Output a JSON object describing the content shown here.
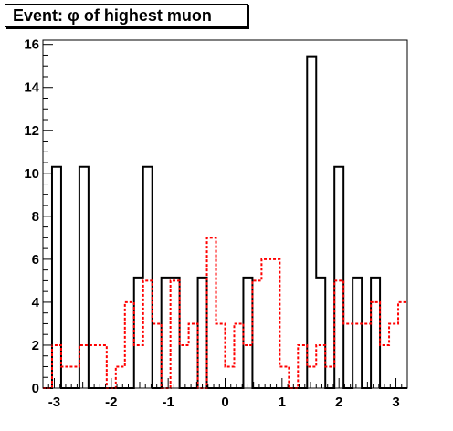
{
  "chart_data": {
    "type": "histogram",
    "title": "Event: φ of highest muon",
    "xlabel": "",
    "ylabel": "",
    "xlim": [
      -3.2,
      3.2
    ],
    "ylim": [
      0,
      16.2
    ],
    "bin_count": 40,
    "x_ticks": [
      -3,
      -2,
      -1,
      0,
      1,
      2,
      3
    ],
    "x_tick_labels": [
      "-3",
      "-2",
      "-1",
      "0",
      "1",
      "2",
      "3"
    ],
    "y_ticks": [
      0,
      2,
      4,
      6,
      8,
      10,
      12,
      14,
      16
    ],
    "y_tick_labels": [
      "0",
      "2",
      "4",
      "6",
      "8",
      "10",
      "12",
      "14",
      "16"
    ],
    "grid": false,
    "legend": null,
    "series": [
      {
        "style": "solid",
        "color": "#000000",
        "values": [
          0,
          10.3,
          0,
          0,
          10.3,
          0,
          0,
          0,
          0,
          0,
          5.15,
          10.3,
          0,
          5.15,
          5.15,
          0,
          0,
          5.15,
          0,
          0,
          0,
          0,
          5.15,
          0,
          0,
          0,
          0,
          0,
          0,
          15.45,
          5.15,
          0,
          10.3,
          0,
          5.15,
          0,
          5.15,
          0,
          0,
          0
        ]
      },
      {
        "style": "dotted",
        "color": "#ff0000",
        "values": [
          0,
          2,
          1,
          1,
          2,
          2,
          2,
          0,
          1,
          4,
          2,
          5,
          3,
          0,
          5,
          2,
          3,
          0,
          7,
          3,
          1,
          3,
          2,
          5,
          6,
          6,
          1,
          0,
          2,
          1,
          2,
          1,
          5,
          3,
          3,
          3,
          4,
          2,
          3,
          4
        ]
      }
    ]
  }
}
